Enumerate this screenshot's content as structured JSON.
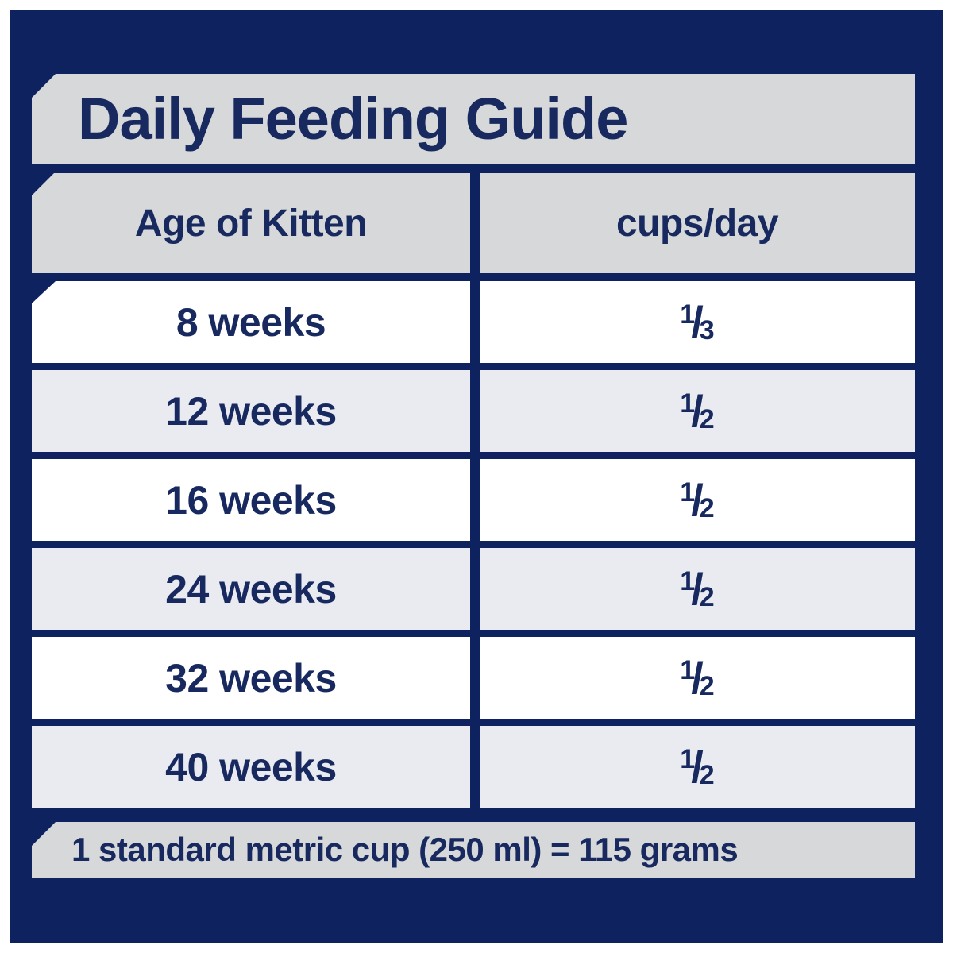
{
  "title": "Daily Feeding Guide",
  "colors": {
    "panel_navy": "#0f2260",
    "bar_gray": "#d7d8da",
    "row_alt_gray": "#e9ebf1",
    "row_white": "#ffffff",
    "text_navy": "#17295f"
  },
  "table": {
    "columns": [
      {
        "label": "Age of Kitten"
      },
      {
        "label": "cups/day"
      }
    ],
    "fraction_slash": "/",
    "rows": [
      {
        "age": "8 weeks",
        "cups_numerator": "1",
        "cups_denominator": "3"
      },
      {
        "age": "12 weeks",
        "cups_numerator": "1",
        "cups_denominator": "2"
      },
      {
        "age": "16 weeks",
        "cups_numerator": "1",
        "cups_denominator": "2"
      },
      {
        "age": "24 weeks",
        "cups_numerator": "1",
        "cups_denominator": "2"
      },
      {
        "age": "32 weeks",
        "cups_numerator": "1",
        "cups_denominator": "2"
      },
      {
        "age": "40 weeks",
        "cups_numerator": "1",
        "cups_denominator": "2"
      }
    ]
  },
  "footer": {
    "note": "1 standard metric cup (250 ml) = 115 grams"
  }
}
